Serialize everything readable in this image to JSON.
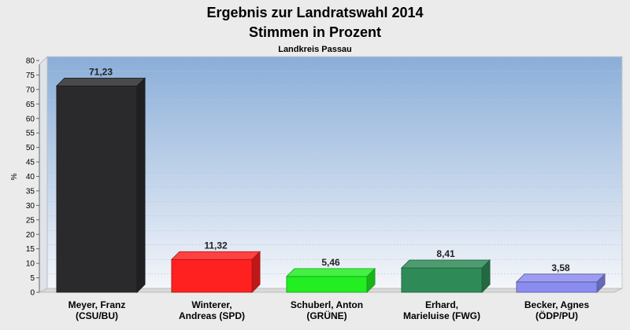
{
  "chart_data": {
    "type": "bar",
    "title": "Ergebnis zur Landratswahl 2014",
    "subtitle": "Stimmen in Prozent",
    "subsubtitle": "Landkreis Passau",
    "ylabel": "%",
    "ylim": [
      0,
      80
    ],
    "ytick_step": 5,
    "grid": true,
    "categories": [
      [
        "Meyer, Franz",
        "(CSU/BU)"
      ],
      [
        "Winterer,",
        "Andreas (SPD)"
      ],
      [
        "Schuberl, Anton",
        "(GRÜNE)"
      ],
      [
        "Erhard,",
        "Marieluise (FWG)"
      ],
      [
        "Becker, Agnes",
        "(ÖDP/PU)"
      ]
    ],
    "values": [
      71.23,
      11.32,
      5.46,
      8.41,
      3.58
    ],
    "value_labels": [
      "71,23",
      "11,32",
      "5,46",
      "8,41",
      "3,58"
    ],
    "colors": [
      "#2a2a2c",
      "#ff2020",
      "#22ee22",
      "#2e8b57",
      "#8a8cf0"
    ]
  }
}
